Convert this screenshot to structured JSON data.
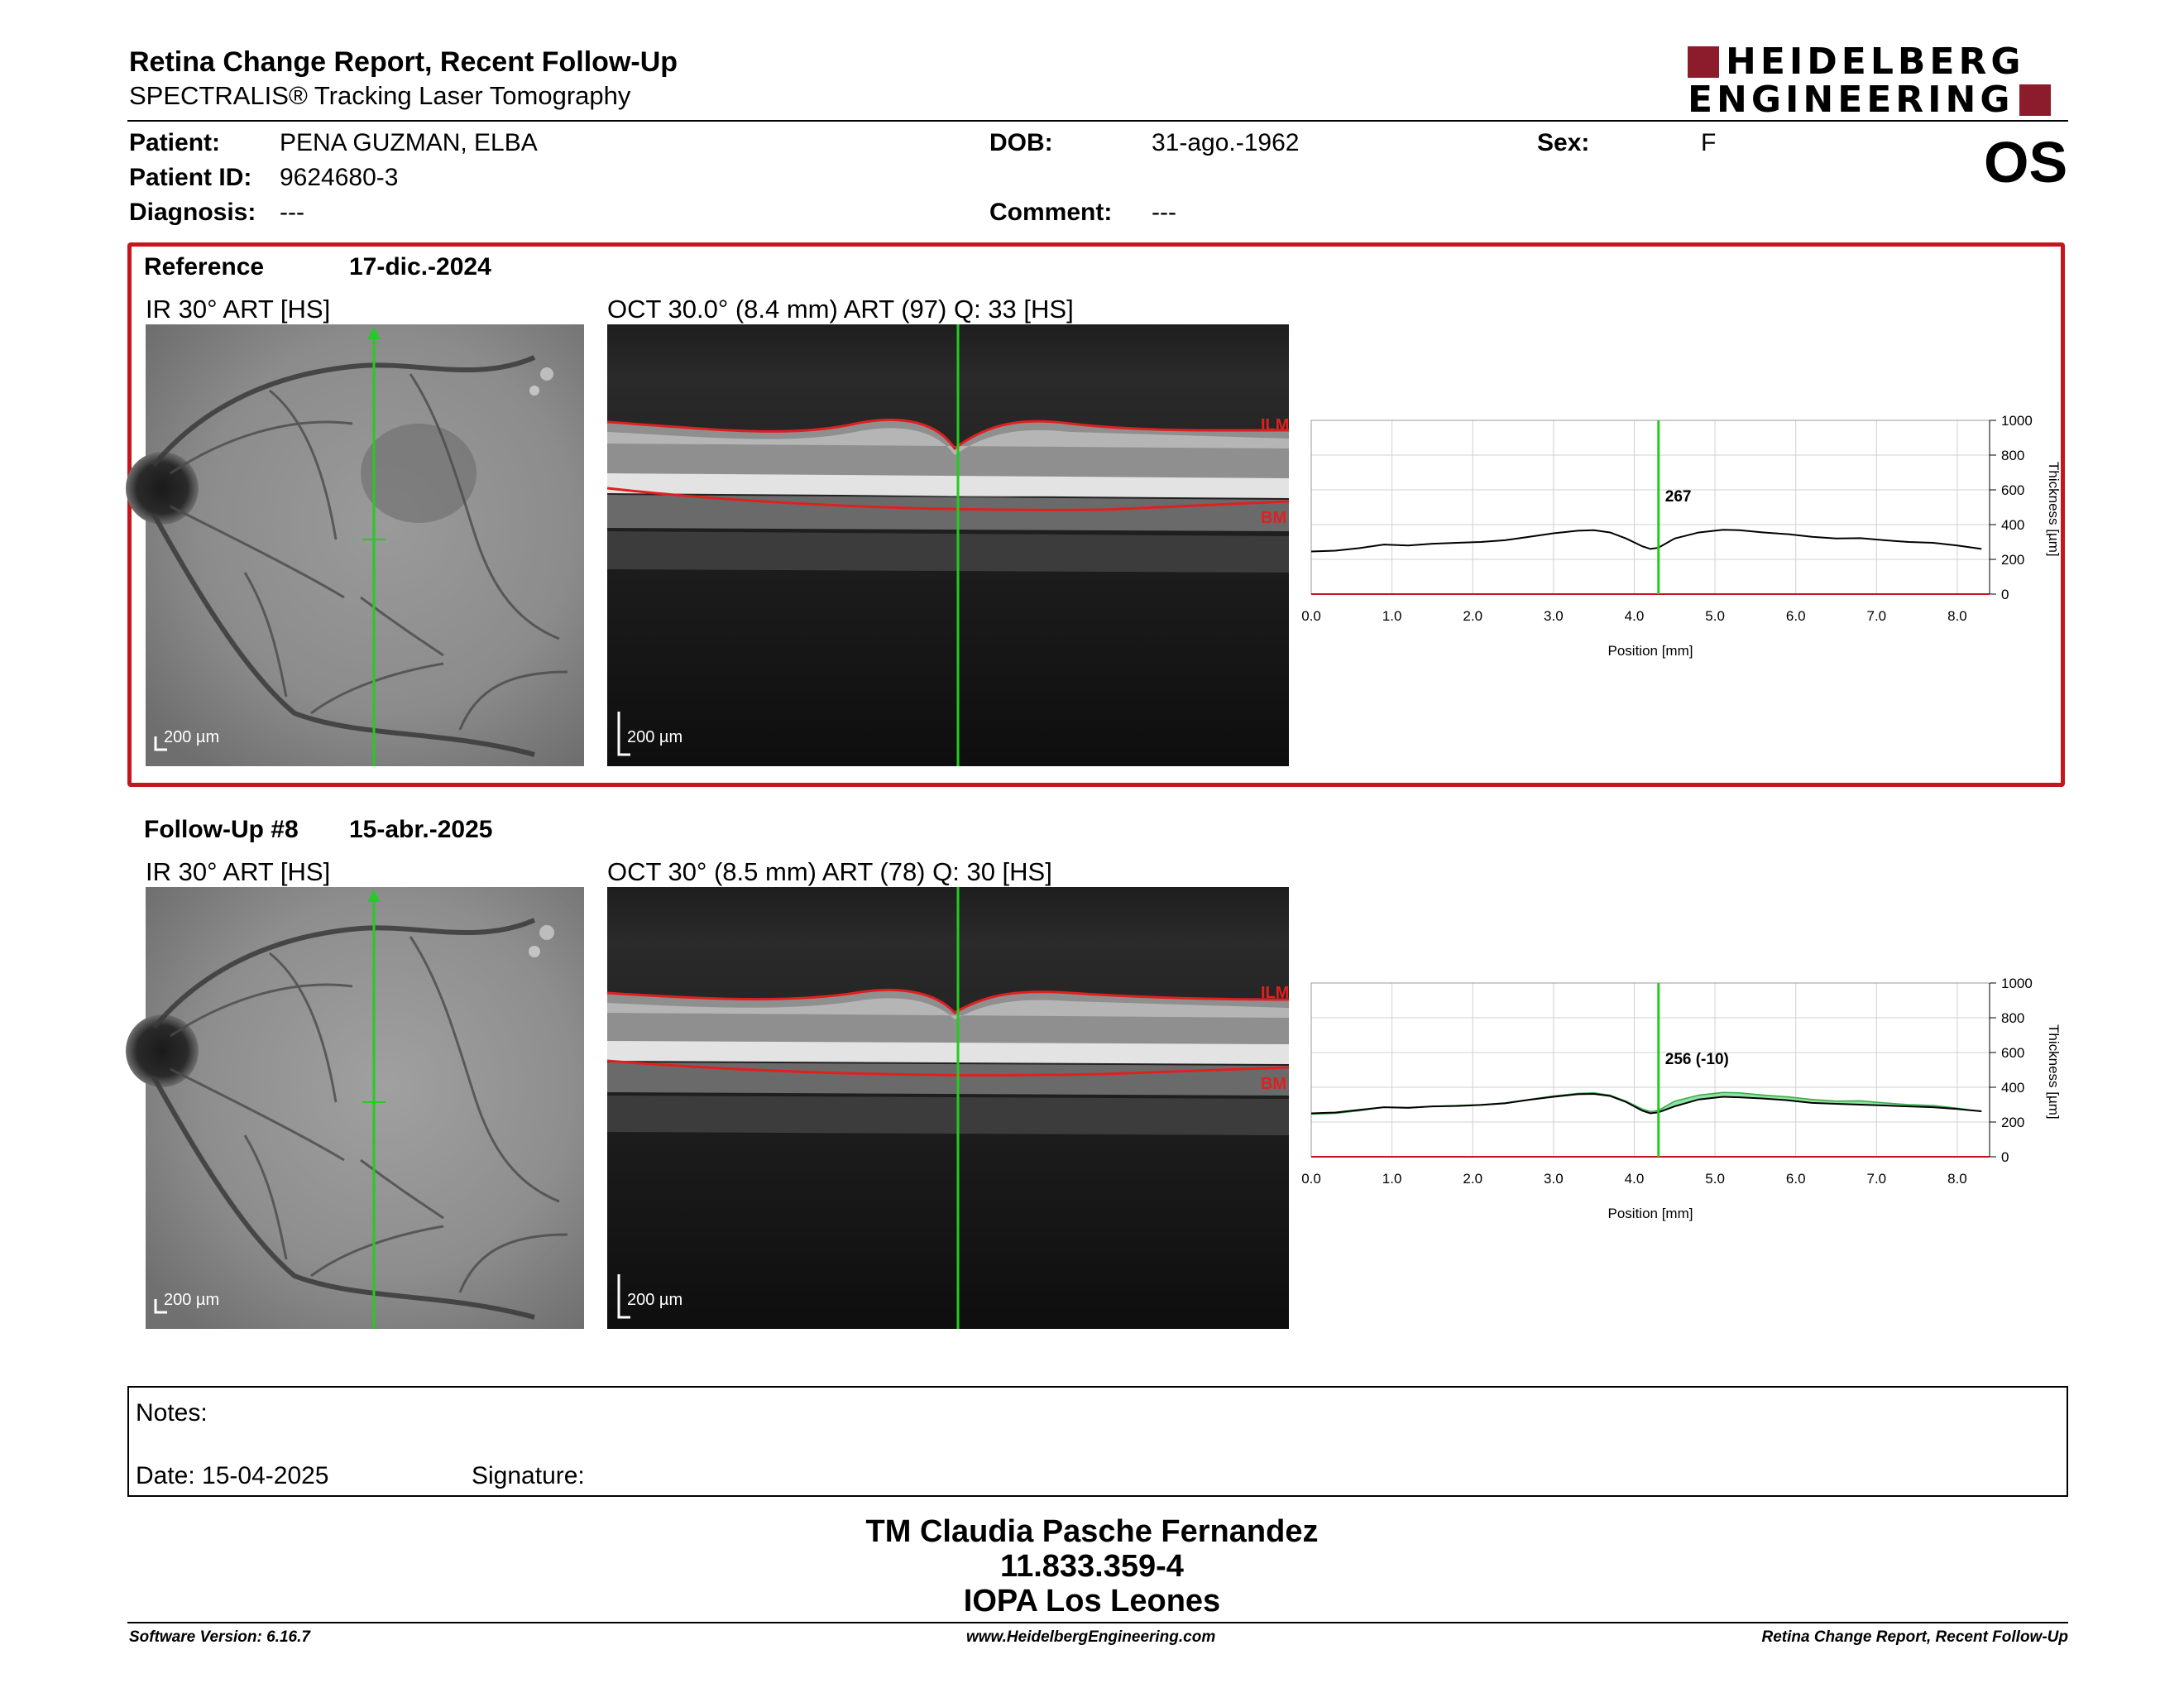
{
  "header": {
    "title": "Retina Change Report, Recent Follow-Up",
    "subtitle": "SPECTRALIS® Tracking Laser Tomography",
    "logo_line1": "HEIDELBERG",
    "logo_line2": "ENGINEERING",
    "eye": "OS"
  },
  "patient": {
    "patient_label": "Patient:",
    "patient_value": "PENA GUZMAN, ELBA",
    "id_label": "Patient ID:",
    "id_value": "9624680-3",
    "diagnosis_label": "Diagnosis:",
    "diagnosis_value": "---",
    "dob_label": "DOB:",
    "dob_value": "31-ago.-1962",
    "comment_label": "Comment:",
    "comment_value": "---",
    "sex_label": "Sex:",
    "sex_value": "F"
  },
  "reference": {
    "label": "Reference",
    "date": "17-dic.-2024",
    "ir_label": "IR 30° ART [HS]",
    "oct_label": "OCT 30.0° (8.4 mm) ART (97) Q: 33 [HS]",
    "scale_label": "200 µm",
    "ilm": "ILM",
    "bm": "BM"
  },
  "followup": {
    "label": "Follow-Up #8",
    "date": "15-abr.-2025",
    "ir_label": "IR 30° ART [HS]",
    "oct_label": "OCT 30° (8.5 mm) ART (78) Q: 30 [HS]",
    "scale_label": "200 µm",
    "ilm": "ILM",
    "bm": "BM"
  },
  "chart_data": [
    {
      "type": "line",
      "xlabel": "Position [mm]",
      "ylabel": "Thickness [µm]",
      "xlim": [
        0,
        8.4
      ],
      "ylim": [
        0,
        1000
      ],
      "x_ticks": [
        "0.0",
        "1.0",
        "2.0",
        "3.0",
        "4.0",
        "5.0",
        "6.0",
        "7.0",
        "8.0"
      ],
      "y_ticks": [
        "0",
        "200",
        "400",
        "600",
        "800",
        "1000"
      ],
      "marker_x": 4.3,
      "marker_label": "267",
      "series": [
        {
          "x": [
            0.0,
            0.3,
            0.6,
            0.9,
            1.2,
            1.5,
            1.8,
            2.1,
            2.4,
            2.7,
            3.0,
            3.3,
            3.5,
            3.7,
            3.9,
            4.1,
            4.2,
            4.3,
            4.5,
            4.8,
            5.1,
            5.3,
            5.6,
            5.9,
            6.2,
            6.5,
            6.8,
            7.1,
            7.4,
            7.7,
            8.0,
            8.3
          ],
          "y": [
            245,
            250,
            265,
            285,
            280,
            290,
            295,
            300,
            310,
            330,
            350,
            365,
            368,
            355,
            320,
            275,
            260,
            267,
            320,
            355,
            370,
            368,
            355,
            345,
            330,
            320,
            322,
            310,
            300,
            295,
            280,
            260
          ]
        }
      ]
    },
    {
      "type": "line",
      "xlabel": "Position [mm]",
      "ylabel": "Thickness [µm]",
      "xlim": [
        0,
        8.4
      ],
      "ylim": [
        0,
        1000
      ],
      "x_ticks": [
        "0.0",
        "1.0",
        "2.0",
        "3.0",
        "4.0",
        "5.0",
        "6.0",
        "7.0",
        "8.0"
      ],
      "y_ticks": [
        "0",
        "200",
        "400",
        "600",
        "800",
        "1000"
      ],
      "marker_x": 4.3,
      "marker_label": "256 (-10)",
      "series": [
        {
          "x": [
            0.0,
            0.3,
            0.6,
            0.9,
            1.2,
            1.5,
            1.8,
            2.1,
            2.4,
            2.7,
            3.0,
            3.3,
            3.5,
            3.7,
            3.9,
            4.1,
            4.2,
            4.3,
            4.5,
            4.8,
            5.1,
            5.3,
            5.6,
            5.9,
            6.2,
            6.5,
            6.8,
            7.1,
            7.4,
            7.7,
            8.0,
            8.3
          ],
          "y": [
            250,
            255,
            270,
            285,
            282,
            290,
            292,
            298,
            308,
            328,
            345,
            360,
            362,
            350,
            315,
            265,
            250,
            256,
            290,
            330,
            345,
            342,
            335,
            325,
            310,
            305,
            300,
            295,
            290,
            285,
            275,
            262
          ]
        },
        {
          "x": [
            0.0,
            0.3,
            0.6,
            0.9,
            1.2,
            1.5,
            1.8,
            2.1,
            2.4,
            2.7,
            3.0,
            3.3,
            3.5,
            3.7,
            3.9,
            4.1,
            4.2,
            4.3,
            4.5,
            4.8,
            5.1,
            5.3,
            5.6,
            5.9,
            6.2,
            6.5,
            6.8,
            7.1,
            7.4,
            7.7,
            8.0,
            8.3
          ],
          "y": [
            245,
            250,
            265,
            285,
            280,
            290,
            295,
            300,
            310,
            330,
            350,
            365,
            368,
            355,
            320,
            275,
            260,
            267,
            320,
            355,
            370,
            368,
            355,
            345,
            330,
            320,
            322,
            310,
            300,
            295,
            280,
            260
          ]
        }
      ]
    }
  ],
  "notes": {
    "notes_label": "Notes:",
    "date_label": "Date: 15-04-2025",
    "signature_label": "Signature:"
  },
  "signoff": {
    "name": "TM Claudia Pasche Fernandez",
    "rut": "11.833.359-4",
    "place": "IOPA Los Leones"
  },
  "footer": {
    "software": "Software Version: 6.16.7",
    "website": "www.HeidelbergEngineering.com",
    "report": "Retina Change Report, Recent Follow-Up"
  },
  "colors": {
    "brand": "#8c1c2c",
    "frame": "#c4161c",
    "marker": "#22cc22",
    "layer": "#e02020"
  }
}
